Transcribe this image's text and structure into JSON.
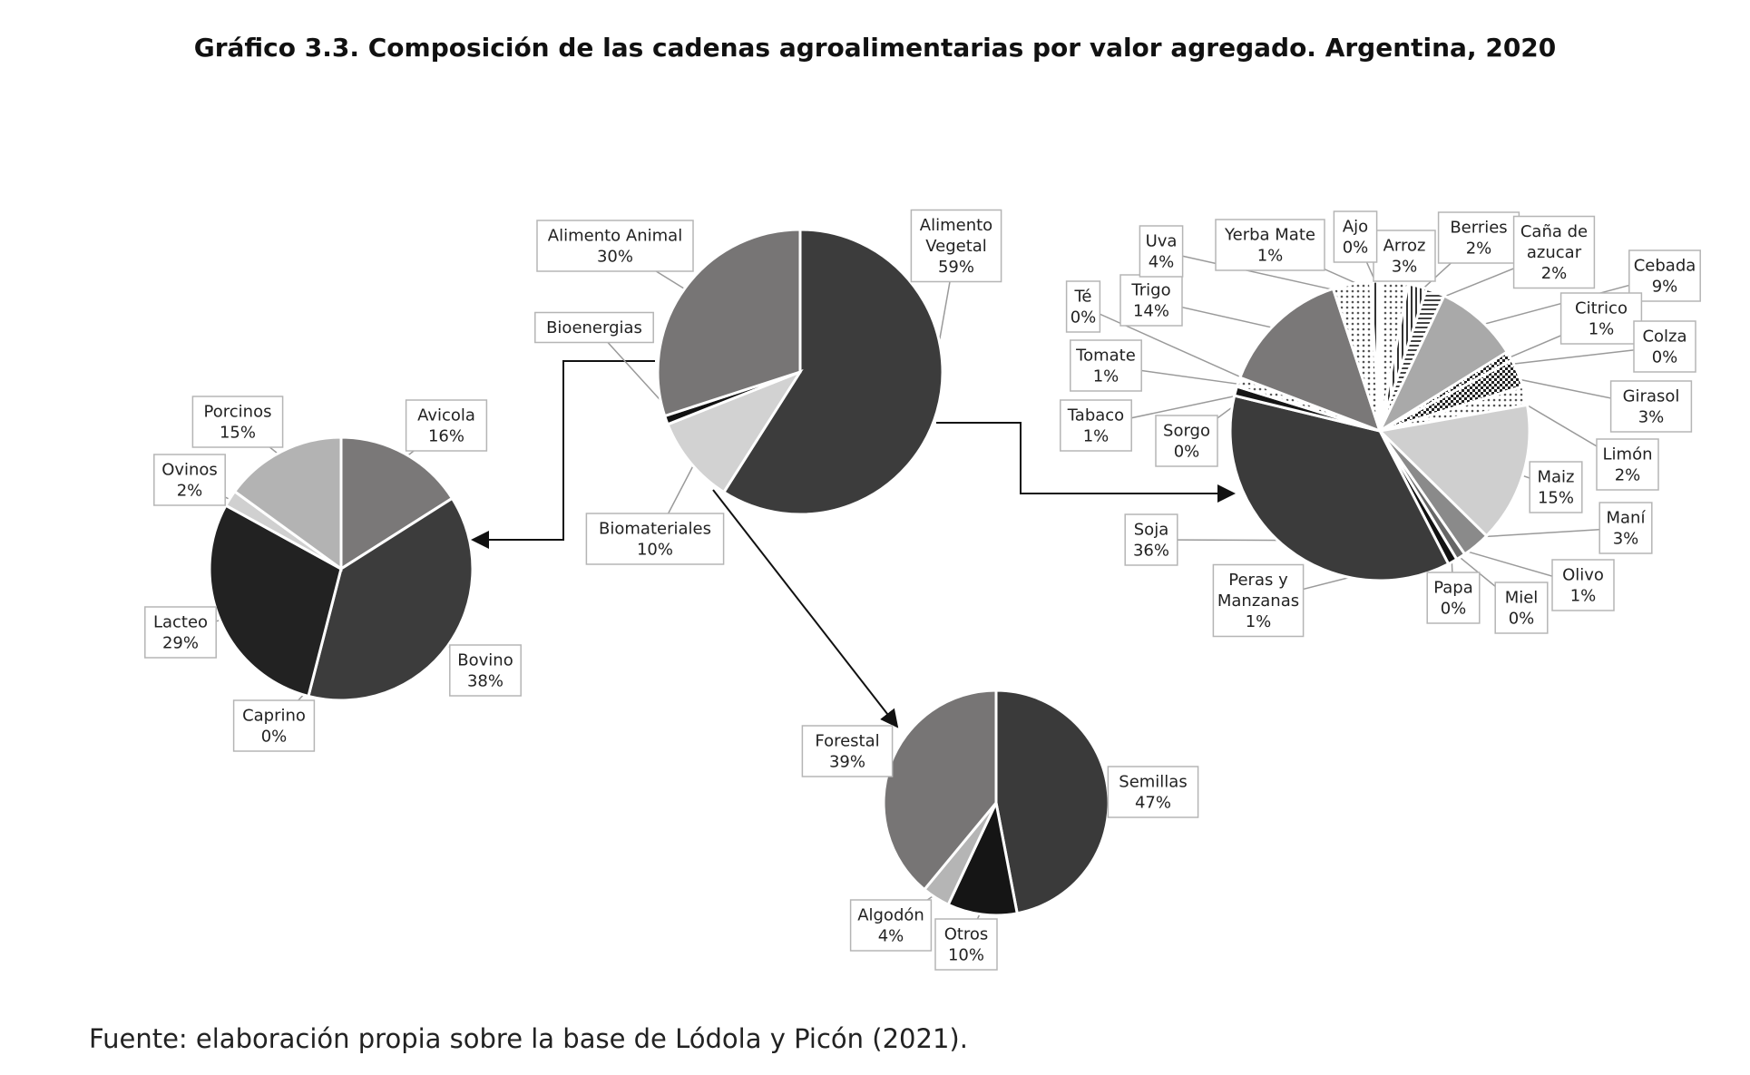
{
  "title": "Gráfico 3.3. Composición de las cadenas agroalimentarias por valor agregado. Argentina, 2020",
  "source": "Fuente: elaboración propia sobre la base de Lódola y Picón (2021).",
  "chart_data": [
    {
      "type": "pie",
      "id": "total",
      "slices": [
        {
          "label": "Alimento Vegetal",
          "value": 59,
          "text": "59%",
          "color": "#3c3c3c"
        },
        {
          "label": "Biomateriales",
          "value": 10,
          "text": "10%",
          "color": "#d2d2d2"
        },
        {
          "label": "Bioenergias",
          "value": 1,
          "text": "",
          "color": "#111111"
        },
        {
          "label": "Alimento Animal",
          "value": 30,
          "text": "30%",
          "color": "#777575"
        }
      ]
    },
    {
      "type": "pie",
      "id": "alimento-animal",
      "slices": [
        {
          "label": "Avicola",
          "value": 16,
          "text": "16%",
          "color": "#7a7878"
        },
        {
          "label": "Bovino",
          "value": 38,
          "text": "38%",
          "color": "#3c3c3c"
        },
        {
          "label": "Caprino",
          "value": 0,
          "text": "0%",
          "color": "#555555"
        },
        {
          "label": "Lacteo",
          "value": 29,
          "text": "29%",
          "color": "#222222"
        },
        {
          "label": "Ovinos",
          "value": 2,
          "text": "2%",
          "color": "#d0d0d0"
        },
        {
          "label": "Porcinos",
          "value": 15,
          "text": "15%",
          "color": "#b3b3b3"
        }
      ]
    },
    {
      "type": "pie",
      "id": "biomateriales",
      "slices": [
        {
          "label": "Semillas",
          "value": 47,
          "text": "47%",
          "color": "#3a3a3a"
        },
        {
          "label": "Otros",
          "value": 10,
          "text": "10%",
          "color": "#151515"
        },
        {
          "label": "Algodón",
          "value": 4,
          "text": "4%",
          "color": "#b5b5b5"
        },
        {
          "label": "Forestal",
          "value": 39,
          "text": "39%",
          "color": "#777575"
        }
      ]
    },
    {
      "type": "pie",
      "id": "alimento-vegetal",
      "slices": [
        {
          "label": "Arroz",
          "value": 3,
          "text": "3%",
          "color": "#f4f4f4",
          "pattern": "dots"
        },
        {
          "label": "Berries",
          "value": 2,
          "text": "2%",
          "color": "#e0e0e0",
          "pattern": "vlines"
        },
        {
          "label": "Caña de azucar",
          "value": 2,
          "text": "2%",
          "color": "#cccccc",
          "pattern": "hlines"
        },
        {
          "label": "Cebada",
          "value": 9,
          "text": "9%",
          "color": "#a9a9a9"
        },
        {
          "label": "Citrico",
          "value": 1,
          "text": "1%",
          "color": "#444444",
          "pattern": "checks"
        },
        {
          "label": "Colza",
          "value": 0,
          "text": "0%",
          "color": "#888888"
        },
        {
          "label": "Girasol",
          "value": 3,
          "text": "3%",
          "color": "#888888",
          "pattern": "checks"
        },
        {
          "label": "Limón",
          "value": 2,
          "text": "2%",
          "color": "#bbbbbb",
          "pattern": "dots"
        },
        {
          "label": "Maiz",
          "value": 15,
          "text": "15%",
          "color": "#cfcfcf"
        },
        {
          "label": "Maní",
          "value": 3,
          "text": "3%",
          "color": "#8a8a8a"
        },
        {
          "label": "Olivo",
          "value": 1,
          "text": "1%",
          "color": "#666666"
        },
        {
          "label": "Miel",
          "value": 0,
          "text": "0%",
          "color": "#999999"
        },
        {
          "label": "Papa",
          "value": 0,
          "text": "0%",
          "color": "#777777"
        },
        {
          "label": "Peras y Manzanas",
          "value": 1,
          "text": "1%",
          "color": "#111111"
        },
        {
          "label": "Soja",
          "value": 36,
          "text": "36%",
          "color": "#3b3b3b"
        },
        {
          "label": "Sorgo",
          "value": 0,
          "text": "0%",
          "color": "#555555"
        },
        {
          "label": "Tabaco",
          "value": 1,
          "text": "1%",
          "color": "#151515"
        },
        {
          "label": "Tomate",
          "value": 1,
          "text": "1%",
          "color": "#aaaaaa",
          "pattern": "dots"
        },
        {
          "label": "Té",
          "value": 0,
          "text": "0%",
          "color": "#999999"
        },
        {
          "label": "Trigo",
          "value": 14,
          "text": "14%",
          "color": "#7a7878"
        },
        {
          "label": "Uva",
          "value": 4,
          "text": "4%",
          "color": "#111111",
          "pattern": "dots"
        },
        {
          "label": "Yerba Mate",
          "value": 1,
          "text": "1%",
          "color": "#666666",
          "pattern": "vlines"
        },
        {
          "label": "Ajo",
          "value": 0,
          "text": "0%",
          "color": "#999999"
        }
      ]
    }
  ]
}
